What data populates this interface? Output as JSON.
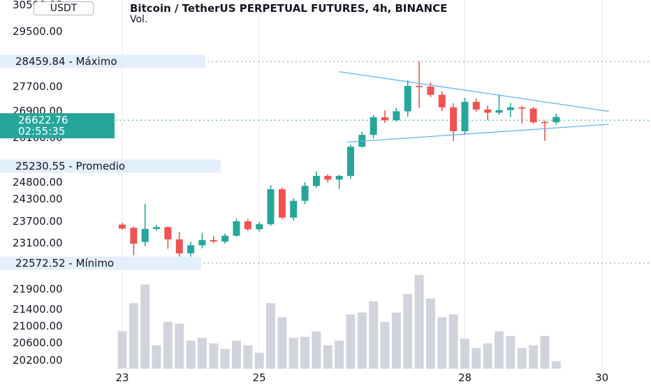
{
  "header": {
    "title": "Bitcoin / TetherUS PERPETUAL FUTURES, 4h, BINANCE",
    "volume_label": "Vol."
  },
  "currency_button": {
    "label": "USDT"
  },
  "price_axis": {
    "ticks": [
      {
        "label": "30500.00",
        "value": 30500
      },
      {
        "label": "29500.00",
        "value": 29500
      },
      {
        "label": "27700.00",
        "value": 27700
      },
      {
        "label": "26900.00",
        "value": 26900
      },
      {
        "label": "26100.00",
        "value": 26100
      },
      {
        "label": "24800.00",
        "value": 24800
      },
      {
        "label": "24300.00",
        "value": 24300
      },
      {
        "label": "23700.00",
        "value": 23700
      },
      {
        "label": "23100.00",
        "value": 23100
      },
      {
        "label": "21900.00",
        "value": 21900
      },
      {
        "label": "21400.00",
        "value": 21400
      },
      {
        "label": "21000.00",
        "value": 21000
      },
      {
        "label": "20600.00",
        "value": 20600
      },
      {
        "label": "20200.00",
        "value": 20200
      }
    ]
  },
  "markers": {
    "max": {
      "value_label": "28459.84",
      "label": "Máximo",
      "value": 28459.84
    },
    "avg": {
      "value_label": "25230.55",
      "label": "Promedio",
      "value": 25230.55
    },
    "min": {
      "value_label": "22572.52",
      "label": "Mínimo",
      "value": 22572.52
    }
  },
  "current_price": {
    "value_label": "26622.76",
    "countdown": "02:55:35",
    "value": 26622.76
  },
  "time_axis": {
    "labels": [
      {
        "label": "23",
        "index": 0
      },
      {
        "label": "25",
        "index": 12
      },
      {
        "label": "28",
        "index": 30
      },
      {
        "label": "30",
        "index": 42
      }
    ]
  },
  "colors": {
    "up": "#26a69a",
    "down": "#ef5350",
    "volume": "#d1d4dc",
    "trendline": "#64b5f6",
    "grid": "#e6e9ee",
    "marker_bg": "#e3effd",
    "price_tag": "#26a69a"
  },
  "chart_data": {
    "type": "candlestick",
    "title": "Bitcoin / TetherUS PERPETUAL FUTURES, 4h, BINANCE",
    "ylim": [
      20000,
      30600
    ],
    "candles": [
      {
        "o": 23610,
        "h": 23660,
        "l": 23470,
        "c": 23500,
        "v": 40
      },
      {
        "o": 23520,
        "h": 23560,
        "l": 22780,
        "c": 23080,
        "v": 70
      },
      {
        "o": 23130,
        "h": 24170,
        "l": 23020,
        "c": 23490,
        "v": 90
      },
      {
        "o": 23490,
        "h": 23600,
        "l": 23450,
        "c": 23540,
        "v": 25
      },
      {
        "o": 23540,
        "h": 23560,
        "l": 22950,
        "c": 23200,
        "v": 50
      },
      {
        "o": 23200,
        "h": 23400,
        "l": 22630,
        "c": 22830,
        "v": 48
      },
      {
        "o": 22830,
        "h": 23130,
        "l": 22710,
        "c": 23040,
        "v": 30
      },
      {
        "o": 23040,
        "h": 23380,
        "l": 22960,
        "c": 23180,
        "v": 33
      },
      {
        "o": 23180,
        "h": 23290,
        "l": 23090,
        "c": 23140,
        "v": 27
      },
      {
        "o": 23140,
        "h": 23360,
        "l": 23080,
        "c": 23300,
        "v": 21
      },
      {
        "o": 23300,
        "h": 23770,
        "l": 23270,
        "c": 23700,
        "v": 30
      },
      {
        "o": 23700,
        "h": 23760,
        "l": 23440,
        "c": 23480,
        "v": 25
      },
      {
        "o": 23480,
        "h": 23680,
        "l": 23420,
        "c": 23620,
        "v": 17
      },
      {
        "o": 23620,
        "h": 24710,
        "l": 23570,
        "c": 24590,
        "v": 70
      },
      {
        "o": 24590,
        "h": 24640,
        "l": 23760,
        "c": 23800,
        "v": 55
      },
      {
        "o": 23800,
        "h": 24320,
        "l": 23720,
        "c": 24250,
        "v": 33
      },
      {
        "o": 24250,
        "h": 24800,
        "l": 24160,
        "c": 24690,
        "v": 34
      },
      {
        "o": 24690,
        "h": 25090,
        "l": 24630,
        "c": 24970,
        "v": 40
      },
      {
        "o": 24970,
        "h": 25010,
        "l": 24790,
        "c": 24870,
        "v": 25
      },
      {
        "o": 24870,
        "h": 25000,
        "l": 24600,
        "c": 24970,
        "v": 30
      },
      {
        "o": 24970,
        "h": 25890,
        "l": 24890,
        "c": 25820,
        "v": 58
      },
      {
        "o": 25820,
        "h": 26270,
        "l": 25790,
        "c": 26180,
        "v": 60
      },
      {
        "o": 26180,
        "h": 26780,
        "l": 26070,
        "c": 26710,
        "v": 72
      },
      {
        "o": 26710,
        "h": 26920,
        "l": 26540,
        "c": 26620,
        "v": 50
      },
      {
        "o": 26620,
        "h": 27000,
        "l": 26590,
        "c": 26890,
        "v": 60
      },
      {
        "o": 26890,
        "h": 27890,
        "l": 26730,
        "c": 27720,
        "v": 80
      },
      {
        "o": 27720,
        "h": 28459.84,
        "l": 27000,
        "c": 27700,
        "v": 100
      },
      {
        "o": 27700,
        "h": 27820,
        "l": 27360,
        "c": 27430,
        "v": 75
      },
      {
        "o": 27430,
        "h": 27550,
        "l": 26890,
        "c": 27020,
        "v": 55
      },
      {
        "o": 27020,
        "h": 27150,
        "l": 25990,
        "c": 26290,
        "v": 58
      },
      {
        "o": 26290,
        "h": 27330,
        "l": 26180,
        "c": 27200,
        "v": 32
      },
      {
        "o": 27200,
        "h": 27300,
        "l": 26880,
        "c": 26950,
        "v": 22
      },
      {
        "o": 26950,
        "h": 27080,
        "l": 26620,
        "c": 26850,
        "v": 27
      },
      {
        "o": 26850,
        "h": 27440,
        "l": 26790,
        "c": 26930,
        "v": 40
      },
      {
        "o": 26930,
        "h": 27170,
        "l": 26720,
        "c": 27020,
        "v": 35
      },
      {
        "o": 27020,
        "h": 27070,
        "l": 26520,
        "c": 26980,
        "v": 22
      },
      {
        "o": 26980,
        "h": 27030,
        "l": 26520,
        "c": 26560,
        "v": 25
      },
      {
        "o": 26570,
        "h": 26610,
        "l": 26000,
        "c": 26560,
        "v": 35
      },
      {
        "o": 26560,
        "h": 26820,
        "l": 26490,
        "c": 26720,
        "v": 8
      }
    ],
    "trendlines": [
      {
        "x1": 19,
        "y1": 28150,
        "x2": 42.6,
        "y2": 26890
      },
      {
        "x1": 19.7,
        "y1": 25960,
        "x2": 42.6,
        "y2": 26500
      }
    ]
  }
}
